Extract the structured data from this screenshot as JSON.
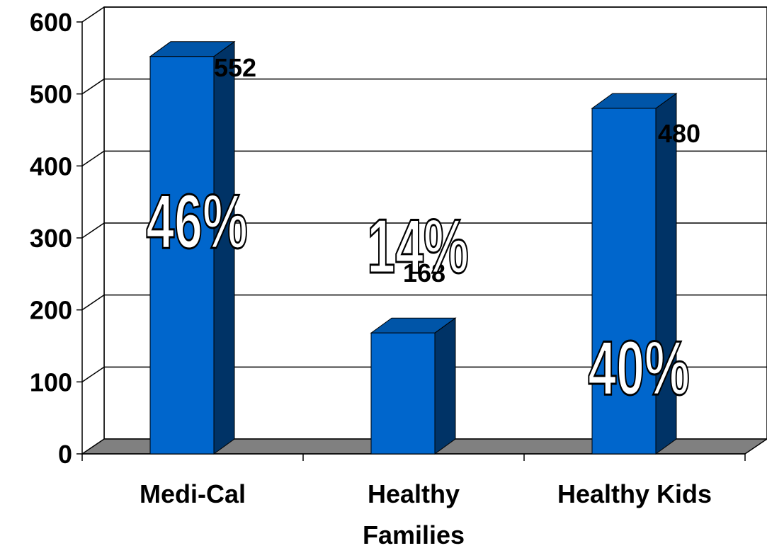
{
  "chart_data": {
    "type": "bar",
    "categories": [
      "Medi-Cal",
      "Healthy Families",
      "Healthy Kids"
    ],
    "values": [
      552,
      168,
      480
    ],
    "percent_labels": [
      "46%",
      "14%",
      "40%"
    ],
    "ylim": [
      0,
      600
    ],
    "yticks": [
      "0",
      "100",
      "200",
      "300",
      "400",
      "500",
      "600"
    ],
    "grid": true,
    "style": "3d-column",
    "colors": {
      "bar_front": "#0066CC",
      "bar_side": "#003366",
      "bar_top": "#0055A8",
      "floor": "#808080",
      "grid": "#000000"
    }
  }
}
